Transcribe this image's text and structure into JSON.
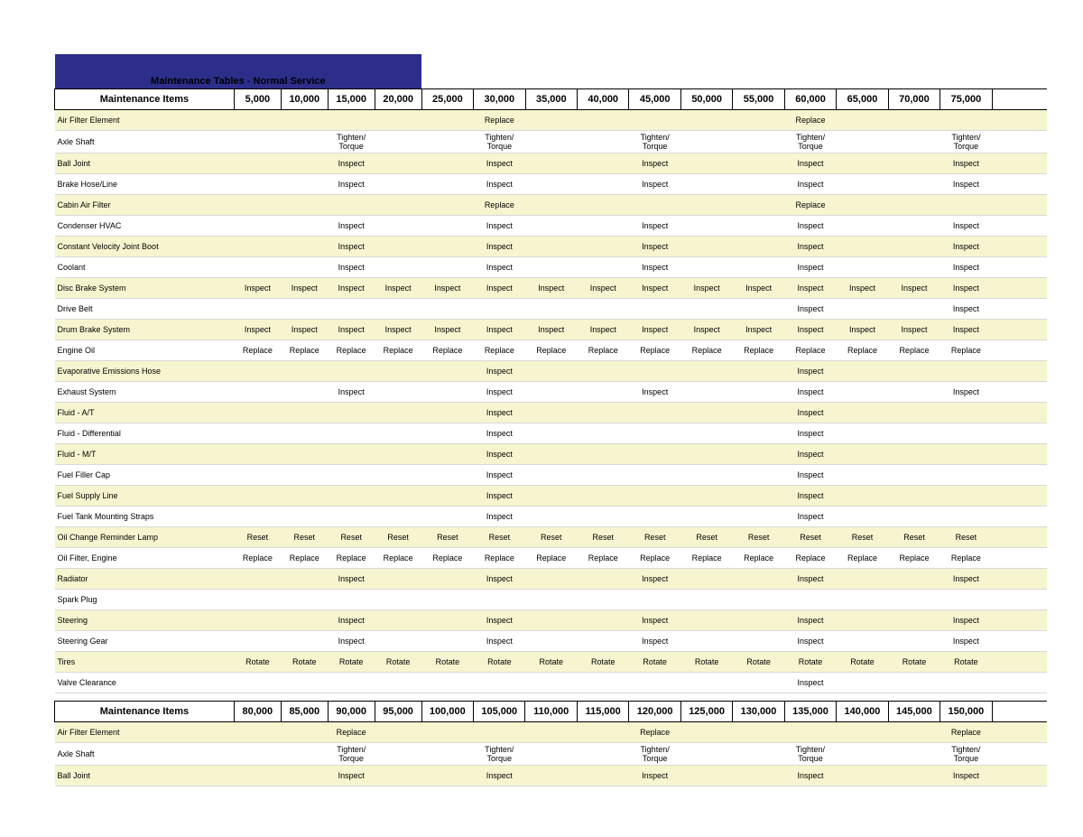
{
  "colors": {
    "header_bg": "#2c2e8a",
    "shade": "#f7f5cf",
    "border": "#000000"
  },
  "table1": {
    "title": "Maintenance Tables - Normal Service",
    "header_label": "Maintenance Items",
    "columns": [
      "5,000",
      "10,000",
      "15,000",
      "20,000",
      "25,000",
      "30,000",
      "35,000",
      "40,000",
      "45,000",
      "50,000",
      "55,000",
      "60,000",
      "65,000",
      "70,000",
      "75,000"
    ],
    "rows": [
      {
        "label": "Air Filter Element",
        "shade": true,
        "cells": [
          "",
          "",
          "",
          "",
          "",
          "Replace",
          "",
          "",
          "",
          "",
          "",
          "Replace",
          "",
          "",
          ""
        ]
      },
      {
        "label": "Axle Shaft",
        "shade": false,
        "cells": [
          "",
          "",
          "Tighten/ Torque",
          "",
          "",
          "Tighten/ Torque",
          "",
          "",
          "Tighten/ Torque",
          "",
          "",
          "Tighten/ Torque",
          "",
          "",
          "Tighten/ Torque"
        ]
      },
      {
        "label": "Ball Joint",
        "shade": true,
        "cells": [
          "",
          "",
          "Inspect",
          "",
          "",
          "Inspect",
          "",
          "",
          "Inspect",
          "",
          "",
          "Inspect",
          "",
          "",
          "Inspect"
        ]
      },
      {
        "label": "Brake Hose/Line",
        "shade": false,
        "cells": [
          "",
          "",
          "Inspect",
          "",
          "",
          "Inspect",
          "",
          "",
          "Inspect",
          "",
          "",
          "Inspect",
          "",
          "",
          "Inspect"
        ]
      },
      {
        "label": "Cabin Air Filter",
        "shade": true,
        "cells": [
          "",
          "",
          "",
          "",
          "",
          "Replace",
          "",
          "",
          "",
          "",
          "",
          "Replace",
          "",
          "",
          ""
        ]
      },
      {
        "label": "Condenser HVAC",
        "shade": false,
        "cells": [
          "",
          "",
          "Inspect",
          "",
          "",
          "Inspect",
          "",
          "",
          "Inspect",
          "",
          "",
          "Inspect",
          "",
          "",
          "Inspect"
        ]
      },
      {
        "label": "Constant Velocity Joint Boot",
        "shade": true,
        "cells": [
          "",
          "",
          "Inspect",
          "",
          "",
          "Inspect",
          "",
          "",
          "Inspect",
          "",
          "",
          "Inspect",
          "",
          "",
          "Inspect"
        ]
      },
      {
        "label": "Coolant",
        "shade": false,
        "cells": [
          "",
          "",
          "Inspect",
          "",
          "",
          "Inspect",
          "",
          "",
          "Inspect",
          "",
          "",
          "Inspect",
          "",
          "",
          "Inspect"
        ]
      },
      {
        "label": "Disc Brake System",
        "shade": true,
        "cells": [
          "Inspect",
          "Inspect",
          "Inspect",
          "Inspect",
          "Inspect",
          "Inspect",
          "Inspect",
          "Inspect",
          "Inspect",
          "Inspect",
          "Inspect",
          "Inspect",
          "Inspect",
          "Inspect",
          "Inspect"
        ]
      },
      {
        "label": "Drive Belt",
        "shade": false,
        "cells": [
          "",
          "",
          "",
          "",
          "",
          "",
          "",
          "",
          "",
          "",
          "",
          "Inspect",
          "",
          "",
          "Inspect"
        ]
      },
      {
        "label": "Drum Brake System",
        "shade": true,
        "cells": [
          "Inspect",
          "Inspect",
          "Inspect",
          "Inspect",
          "Inspect",
          "Inspect",
          "Inspect",
          "Inspect",
          "Inspect",
          "Inspect",
          "Inspect",
          "Inspect",
          "Inspect",
          "Inspect",
          "Inspect"
        ]
      },
      {
        "label": "Engine Oil",
        "shade": false,
        "cells": [
          "Replace",
          "Replace",
          "Replace",
          "Replace",
          "Replace",
          "Replace",
          "Replace",
          "Replace",
          "Replace",
          "Replace",
          "Replace",
          "Replace",
          "Replace",
          "Replace",
          "Replace"
        ]
      },
      {
        "label": "Evaporative Emissions Hose",
        "shade": true,
        "cells": [
          "",
          "",
          "",
          "",
          "",
          "Inspect",
          "",
          "",
          "",
          "",
          "",
          "Inspect",
          "",
          "",
          ""
        ]
      },
      {
        "label": "Exhaust System",
        "shade": false,
        "cells": [
          "",
          "",
          "Inspect",
          "",
          "",
          "Inspect",
          "",
          "",
          "Inspect",
          "",
          "",
          "Inspect",
          "",
          "",
          "Inspect"
        ]
      },
      {
        "label": "Fluid - A/T",
        "shade": true,
        "cells": [
          "",
          "",
          "",
          "",
          "",
          "Inspect",
          "",
          "",
          "",
          "",
          "",
          "Inspect",
          "",
          "",
          ""
        ]
      },
      {
        "label": "Fluid - Differential",
        "shade": false,
        "cells": [
          "",
          "",
          "",
          "",
          "",
          "Inspect",
          "",
          "",
          "",
          "",
          "",
          "Inspect",
          "",
          "",
          ""
        ]
      },
      {
        "label": "Fluid - M/T",
        "shade": true,
        "cells": [
          "",
          "",
          "",
          "",
          "",
          "Inspect",
          "",
          "",
          "",
          "",
          "",
          "Inspect",
          "",
          "",
          ""
        ]
      },
      {
        "label": "Fuel Filler Cap",
        "shade": false,
        "cells": [
          "",
          "",
          "",
          "",
          "",
          "Inspect",
          "",
          "",
          "",
          "",
          "",
          "Inspect",
          "",
          "",
          ""
        ]
      },
      {
        "label": "Fuel Supply Line",
        "shade": true,
        "cells": [
          "",
          "",
          "",
          "",
          "",
          "Inspect",
          "",
          "",
          "",
          "",
          "",
          "Inspect",
          "",
          "",
          ""
        ]
      },
      {
        "label": "Fuel Tank Mounting Straps",
        "shade": false,
        "cells": [
          "",
          "",
          "",
          "",
          "",
          "Inspect",
          "",
          "",
          "",
          "",
          "",
          "Inspect",
          "",
          "",
          ""
        ]
      },
      {
        "label": "Oil Change Reminder Lamp",
        "shade": true,
        "cells": [
          "Reset",
          "Reset",
          "Reset",
          "Reset",
          "Reset",
          "Reset",
          "Reset",
          "Reset",
          "Reset",
          "Reset",
          "Reset",
          "Reset",
          "Reset",
          "Reset",
          "Reset"
        ]
      },
      {
        "label": "Oil Filter, Engine",
        "shade": false,
        "cells": [
          "Replace",
          "Replace",
          "Replace",
          "Replace",
          "Replace",
          "Replace",
          "Replace",
          "Replace",
          "Replace",
          "Replace",
          "Replace",
          "Replace",
          "Replace",
          "Replace",
          "Replace"
        ]
      },
      {
        "label": "Radiator",
        "shade": true,
        "cells": [
          "",
          "",
          "Inspect",
          "",
          "",
          "Inspect",
          "",
          "",
          "Inspect",
          "",
          "",
          "Inspect",
          "",
          "",
          "Inspect"
        ]
      },
      {
        "label": "Spark Plug",
        "shade": false,
        "cells": [
          "",
          "",
          "",
          "",
          "",
          "",
          "",
          "",
          "",
          "",
          "",
          "",
          "",
          "",
          ""
        ]
      },
      {
        "label": "Steering",
        "shade": true,
        "cells": [
          "",
          "",
          "Inspect",
          "",
          "",
          "Inspect",
          "",
          "",
          "Inspect",
          "",
          "",
          "Inspect",
          "",
          "",
          "Inspect"
        ]
      },
      {
        "label": "Steering Gear",
        "shade": false,
        "cells": [
          "",
          "",
          "Inspect",
          "",
          "",
          "Inspect",
          "",
          "",
          "Inspect",
          "",
          "",
          "Inspect",
          "",
          "",
          "Inspect"
        ]
      },
      {
        "label": "Tires",
        "shade": true,
        "cells": [
          "Rotate",
          "Rotate",
          "Rotate",
          "Rotate",
          "Rotate",
          "Rotate",
          "Rotate",
          "Rotate",
          "Rotate",
          "Rotate",
          "Rotate",
          "Rotate",
          "Rotate",
          "Rotate",
          "Rotate"
        ]
      },
      {
        "label": "Valve Clearance",
        "shade": false,
        "cells": [
          "",
          "",
          "",
          "",
          "",
          "",
          "",
          "",
          "",
          "",
          "",
          "Inspect",
          "",
          "",
          ""
        ]
      }
    ]
  },
  "table2": {
    "header_label": "Maintenance Items",
    "columns": [
      "80,000",
      "85,000",
      "90,000",
      "95,000",
      "100,000",
      "105,000",
      "110,000",
      "115,000",
      "120,000",
      "125,000",
      "130,000",
      "135,000",
      "140,000",
      "145,000",
      "150,000"
    ],
    "rows": [
      {
        "label": "Air Filter Element",
        "shade": true,
        "cells": [
          "",
          "",
          "Replace",
          "",
          "",
          "",
          "",
          "",
          "Replace",
          "",
          "",
          "",
          "",
          "",
          "Replace"
        ]
      },
      {
        "label": "Axle Shaft",
        "shade": false,
        "cells": [
          "",
          "",
          "Tighten/ Torque",
          "",
          "",
          "Tighten/ Torque",
          "",
          "",
          "Tighten/ Torque",
          "",
          "",
          "Tighten/ Torque",
          "",
          "",
          "Tighten/ Torque"
        ]
      },
      {
        "label": "Ball Joint",
        "shade": true,
        "cells": [
          "",
          "",
          "Inspect",
          "",
          "",
          "Inspect",
          "",
          "",
          "Inspect",
          "",
          "",
          "Inspect",
          "",
          "",
          "Inspect"
        ]
      }
    ]
  }
}
